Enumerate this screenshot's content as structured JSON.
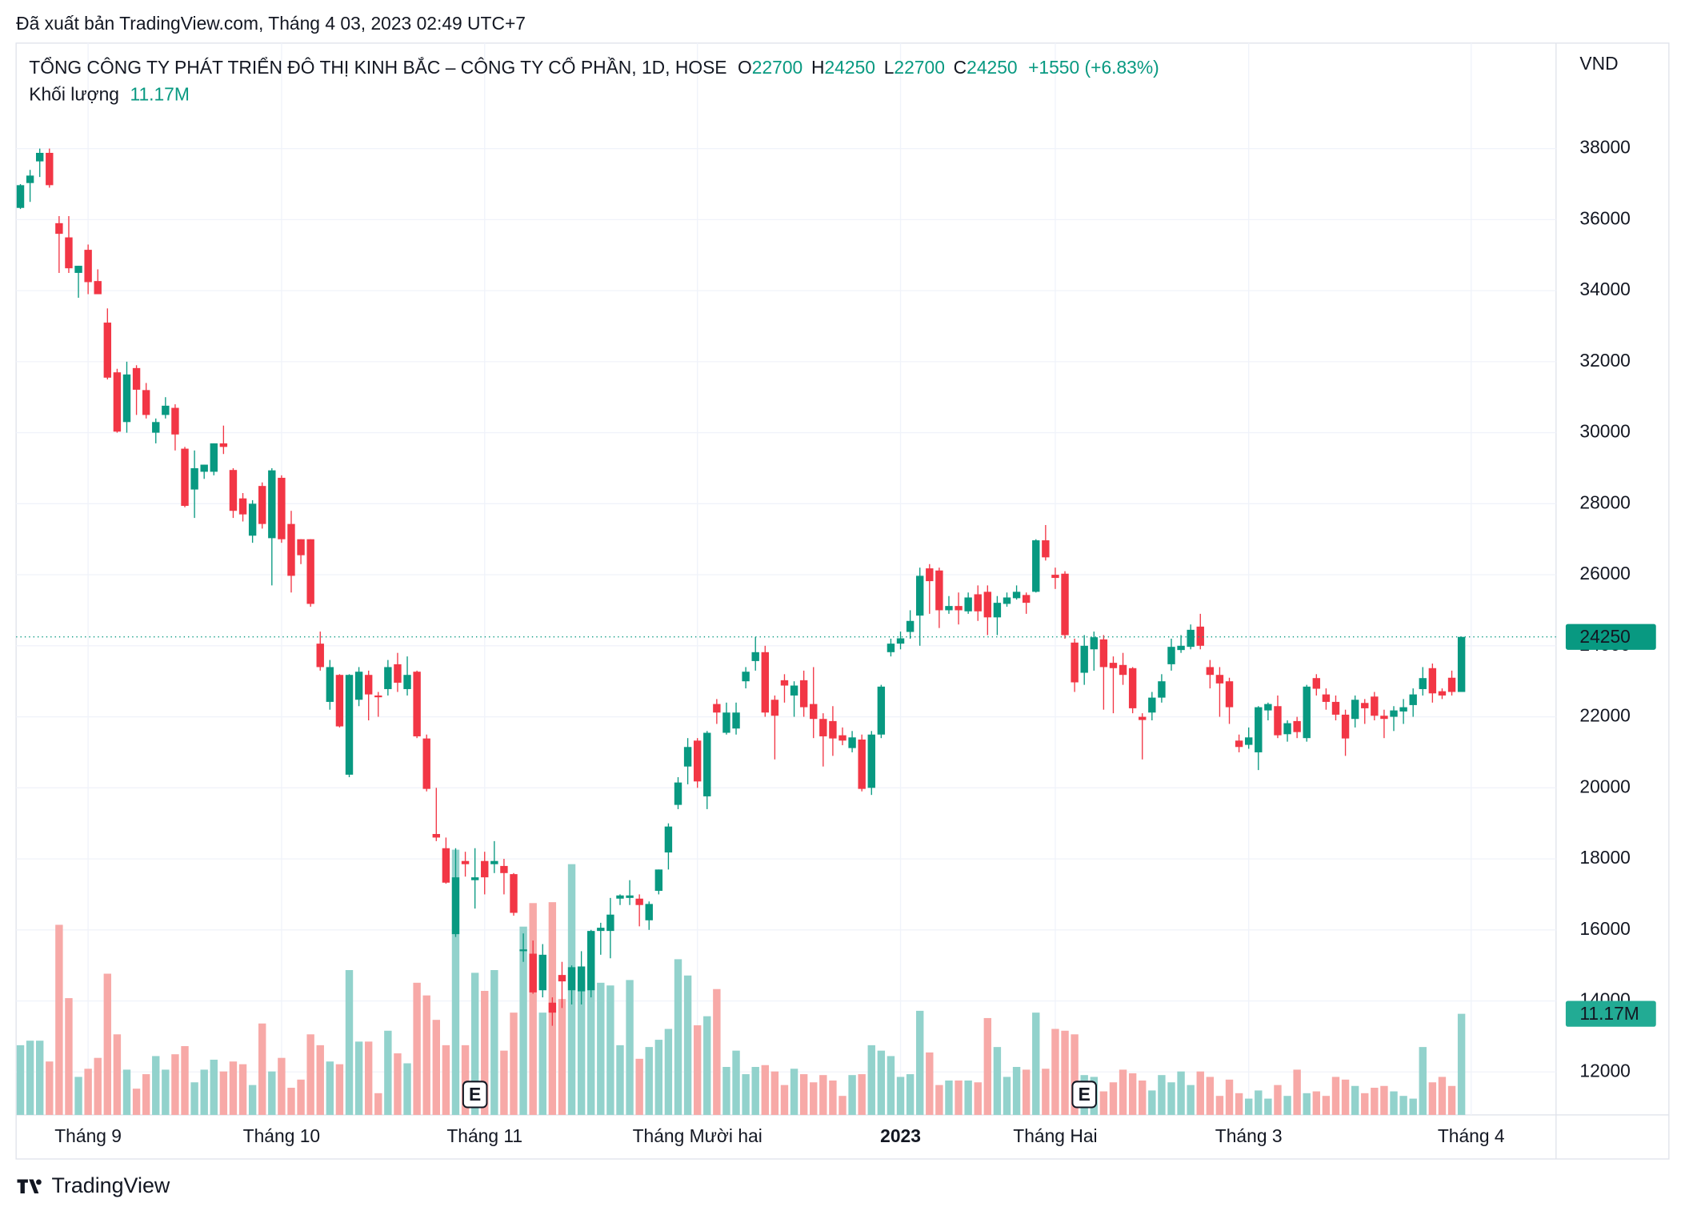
{
  "chart_data": {
    "type": "candlestick",
    "publisher": "Đã xuất bản TradingView.com, Tháng 4 03, 2023 02:49 UTC+7",
    "title": "TỔNG CÔNG TY PHÁT TRIỂN ĐÔ THỊ KINH BẮC – CÔNG TY CỔ PHẦN, 1D, HOSE",
    "ohlc": [
      {
        "label": "O",
        "value": 22700
      },
      {
        "label": "H",
        "value": 24250
      },
      {
        "label": "L",
        "value": 22700
      },
      {
        "label": "C",
        "value": 24250
      }
    ],
    "change": "+1550 (+6.83%)",
    "volume_title": "Khối lượng",
    "currency": "VND",
    "brand": "TradingView",
    "up_color": "#089981",
    "down_color": "#f23645",
    "volume_up_color": "#92d2cc",
    "volume_down_color": "#f7a9a7",
    "ylim": [
      10790,
      40970
    ],
    "yticks": [
      12000,
      14000,
      16000,
      18000,
      20000,
      22000,
      24000,
      26000,
      28000,
      30000,
      32000,
      34000,
      36000,
      38000
    ],
    "volume_ylim": [
      0,
      118.4
    ],
    "grid": true,
    "last_price": 24250,
    "last_volume": {
      "value": 11.17,
      "label": "11.17M"
    },
    "xticks": [
      {
        "value": 7,
        "label": "Tháng 9"
      },
      {
        "value": 27,
        "label": "Tháng 10"
      },
      {
        "value": 48,
        "label": "Tháng 11"
      },
      {
        "value": 70,
        "label": "Tháng Mười hai"
      },
      {
        "value": 91,
        "label": "2023",
        "bold": true
      },
      {
        "value": 107,
        "label": "Tháng Hai"
      },
      {
        "value": 127,
        "label": "Tháng 3"
      },
      {
        "value": 150,
        "label": "Tháng 4"
      }
    ],
    "earnings": [
      {
        "index": 47,
        "label": "E"
      },
      {
        "index": 110,
        "label": "E"
      }
    ],
    "open": [
      36330,
      37030,
      37640,
      37880,
      35900,
      35500,
      34500,
      35150,
      34270,
      33100,
      31700,
      30300,
      31820,
      31200,
      30000,
      30500,
      30700,
      29550,
      28400,
      28900,
      28900,
      29700,
      28950,
      28150,
      27100,
      28500,
      27030,
      28730,
      27430,
      27000,
      27000,
      24060,
      22420,
      23180,
      20370,
      22480,
      23180,
      22600,
      22780,
      23480,
      22780,
      23270,
      21390,
      18700,
      18300,
      15880,
      17940,
      17400,
      17940,
      17850,
      17800,
      17570,
      15400,
      15330,
      14300,
      13950,
      14730,
      14300,
      14270,
      14300,
      15970,
      15970,
      16880,
      16900,
      16880,
      16270,
      17100,
      18180,
      19520,
      20600,
      21330,
      19760,
      22360,
      21550,
      21670,
      23000,
      23570,
      23820,
      22480,
      23030,
      22600,
      23030,
      22360,
      21940,
      21880,
      21480,
      21120,
      21360,
      20000,
      21500,
      23820,
      24060,
      24390,
      24850,
      26180,
      26120,
      25000,
      25120,
      24970,
      25450,
      25520,
      24800,
      25180,
      25340,
      25430,
      25520,
      26970,
      26000,
      26030,
      24090,
      23240,
      23900,
      24180,
      23520,
      23460,
      23370,
      22000,
      22120,
      22540,
      23480,
      23880,
      23970,
      24540,
      23400,
      23180,
      23000,
      21330,
      21210,
      21000,
      22180,
      22300,
      21510,
      21880,
      21400,
      23090,
      22630,
      22420,
      22060,
      21940,
      22390,
      22570,
      22030,
      22000,
      22150,
      22330,
      22780,
      23370,
      22720,
      23100,
      22700
    ],
    "high": [
      37000,
      37400,
      38000,
      38000,
      36100,
      36100,
      34700,
      35300,
      34600,
      33500,
      31800,
      32000,
      31900,
      31400,
      30400,
      31000,
      30800,
      29600,
      29500,
      29100,
      29700,
      30200,
      29000,
      28300,
      28100,
      28600,
      29000,
      28800,
      27800,
      27000,
      27000,
      24400,
      23600,
      23200,
      23200,
      23400,
      23300,
      22700,
      23600,
      23800,
      23700,
      23300,
      21500,
      20000,
      18600,
      18300,
      18200,
      18300,
      18200,
      18500,
      18000,
      17600,
      15900,
      15700,
      15600,
      14100,
      15100,
      15000,
      15400,
      16000,
      16200,
      16900,
      17000,
      17400,
      17000,
      16800,
      17700,
      19000,
      20300,
      21400,
      21400,
      21600,
      22500,
      22400,
      22400,
      23400,
      24250,
      24000,
      22600,
      23200,
      23000,
      23300,
      23400,
      22100,
      22300,
      21700,
      21600,
      21500,
      21600,
      22900,
      24200,
      24400,
      25000,
      26200,
      26300,
      26200,
      25400,
      25500,
      25500,
      25700,
      25700,
      25400,
      25500,
      25700,
      25500,
      27000,
      27400,
      26200,
      26100,
      24200,
      24300,
      24400,
      24300,
      23700,
      23800,
      23400,
      22100,
      22700,
      23200,
      24200,
      24300,
      24600,
      24900,
      23600,
      23400,
      23100,
      21500,
      21700,
      22300,
      22400,
      22600,
      21900,
      22000,
      22900,
      23200,
      22800,
      22600,
      22200,
      22600,
      22500,
      22700,
      22200,
      22300,
      22500,
      22800,
      23400,
      23500,
      22800,
      23300,
      24250
    ],
    "low": [
      36300,
      36500,
      37200,
      36900,
      34500,
      34500,
      33800,
      33900,
      33900,
      31500,
      30000,
      30000,
      30500,
      30400,
      29700,
      30400,
      29500,
      27900,
      27600,
      28700,
      28800,
      29400,
      27600,
      27500,
      26900,
      27300,
      25700,
      26900,
      25500,
      26300,
      25100,
      23300,
      22200,
      21700,
      20300,
      22300,
      21900,
      22000,
      22600,
      22700,
      22600,
      21400,
      19900,
      18500,
      17300,
      15800,
      17500,
      16600,
      17000,
      17600,
      17000,
      16400,
      15100,
      14200,
      14100,
      13300,
      13800,
      13900,
      13900,
      14100,
      15300,
      15200,
      16700,
      16700,
      16100,
      16000,
      17000,
      17700,
      19400,
      20100,
      20000,
      19400,
      21800,
      21500,
      21500,
      22800,
      23300,
      22000,
      20800,
      22400,
      22000,
      22000,
      21400,
      20600,
      20900,
      21200,
      21000,
      19900,
      19800,
      21400,
      23700,
      23900,
      24200,
      24000,
      24900,
      24500,
      24900,
      24600,
      24900,
      24700,
      24300,
      24300,
      25100,
      25300,
      24900,
      25500,
      26400,
      25600,
      24200,
      22700,
      22900,
      23300,
      22200,
      22100,
      22900,
      22100,
      20800,
      21900,
      22400,
      23300,
      23800,
      23900,
      23900,
      22800,
      22000,
      21800,
      21000,
      21100,
      20500,
      21900,
      21400,
      21300,
      21400,
      21300,
      22600,
      22200,
      21900,
      20900,
      21700,
      21800,
      21900,
      21400,
      21600,
      21800,
      22000,
      22600,
      22400,
      22500,
      22600,
      22700
    ],
    "close": [
      36970,
      37240,
      37880,
      36970,
      35600,
      34630,
      34700,
      34240,
      33900,
      31550,
      30030,
      31640,
      31210,
      30500,
      30300,
      30760,
      29950,
      27940,
      29000,
      29100,
      29700,
      29600,
      27800,
      27700,
      28000,
      27430,
      28940,
      27000,
      25970,
      26550,
      25180,
      23400,
      23400,
      21730,
      23180,
      23270,
      22630,
      22550,
      23400,
      22960,
      23180,
      21450,
      19970,
      18600,
      17330,
      17480,
      17850,
      17480,
      17480,
      17940,
      17600,
      16480,
      15450,
      14240,
      15300,
      13670,
      14550,
      14950,
      14970,
      15970,
      16060,
      16430,
      16970,
      16970,
      16700,
      16730,
      17700,
      18910,
      20150,
      21150,
      20180,
      21550,
      22120,
      22120,
      22120,
      23270,
      23820,
      22120,
      22030,
      22880,
      22880,
      22270,
      21940,
      21450,
      21390,
      21330,
      21420,
      19970,
      21500,
      22850,
      24060,
      24210,
      24700,
      25970,
      25820,
      25000,
      25120,
      25000,
      25360,
      24970,
      24800,
      25210,
      25360,
      25520,
      25210,
      26970,
      26490,
      25910,
      24300,
      22970,
      24000,
      24240,
      23400,
      23370,
      23180,
      22240,
      21910,
      22540,
      23000,
      23970,
      24000,
      24450,
      24000,
      23180,
      22940,
      22270,
      21150,
      21420,
      22270,
      22360,
      21480,
      21820,
      21570,
      22850,
      22790,
      22420,
      22060,
      21390,
      22480,
      22240,
      22030,
      21940,
      22180,
      22270,
      22630,
      23090,
      22660,
      22600,
      22700,
      24250
    ],
    "volume": [
      7.7,
      8.2,
      8.2,
      5.9,
      21.0,
      12.9,
      4.2,
      5.1,
      6.3,
      15.6,
      8.9,
      5.0,
      2.9,
      4.5,
      6.5,
      5.0,
      6.7,
      7.6,
      3.6,
      5.0,
      6.1,
      4.8,
      5.9,
      5.6,
      3.3,
      10.1,
      4.8,
      6.3,
      3.0,
      3.9,
      8.9,
      7.7,
      5.9,
      5.6,
      16.0,
      8.1,
      8.1,
      2.4,
      9.3,
      6.8,
      5.7,
      14.6,
      13.2,
      10.5,
      7.7,
      29.3,
      7.7,
      15.7,
      13.7,
      16.0,
      7.1,
      11.3,
      20.8,
      23.4,
      11.3,
      23.5,
      12.8,
      27.7,
      14.9,
      20.2,
      14.6,
      14.3,
      7.7,
      14.9,
      6.2,
      7.5,
      8.3,
      9.5,
      17.2,
      15.4,
      9.9,
      10.9,
      13.9,
      5.3,
      7.1,
      4.5,
      5.3,
      5.5,
      4.8,
      3.3,
      5.1,
      4.5,
      3.6,
      4.4,
      3.8,
      2.1,
      4.4,
      4.5,
      7.7,
      7.1,
      6.5,
      4.2,
      4.5,
      11.5,
      6.9,
      3.3,
      3.8,
      3.8,
      3.8,
      3.6,
      10.7,
      7.5,
      4.2,
      5.3,
      5.0,
      11.3,
      5.1,
      9.5,
      9.3,
      8.9,
      4.4,
      4.2,
      2.6,
      3.6,
      5.0,
      4.6,
      3.8,
      2.7,
      4.4,
      3.6,
      4.8,
      3.3,
      4.8,
      4.2,
      2.1,
      3.9,
      2.4,
      1.8,
      2.7,
      1.8,
      3.3,
      2.1,
      5.0,
      2.4,
      2.6,
      2.1,
      4.2,
      3.9,
      3.2,
      2.4,
      3.0,
      3.2,
      2.6,
      2.1,
      1.8,
      7.5,
      3.6,
      4.2,
      3.2,
      11.17
    ]
  }
}
